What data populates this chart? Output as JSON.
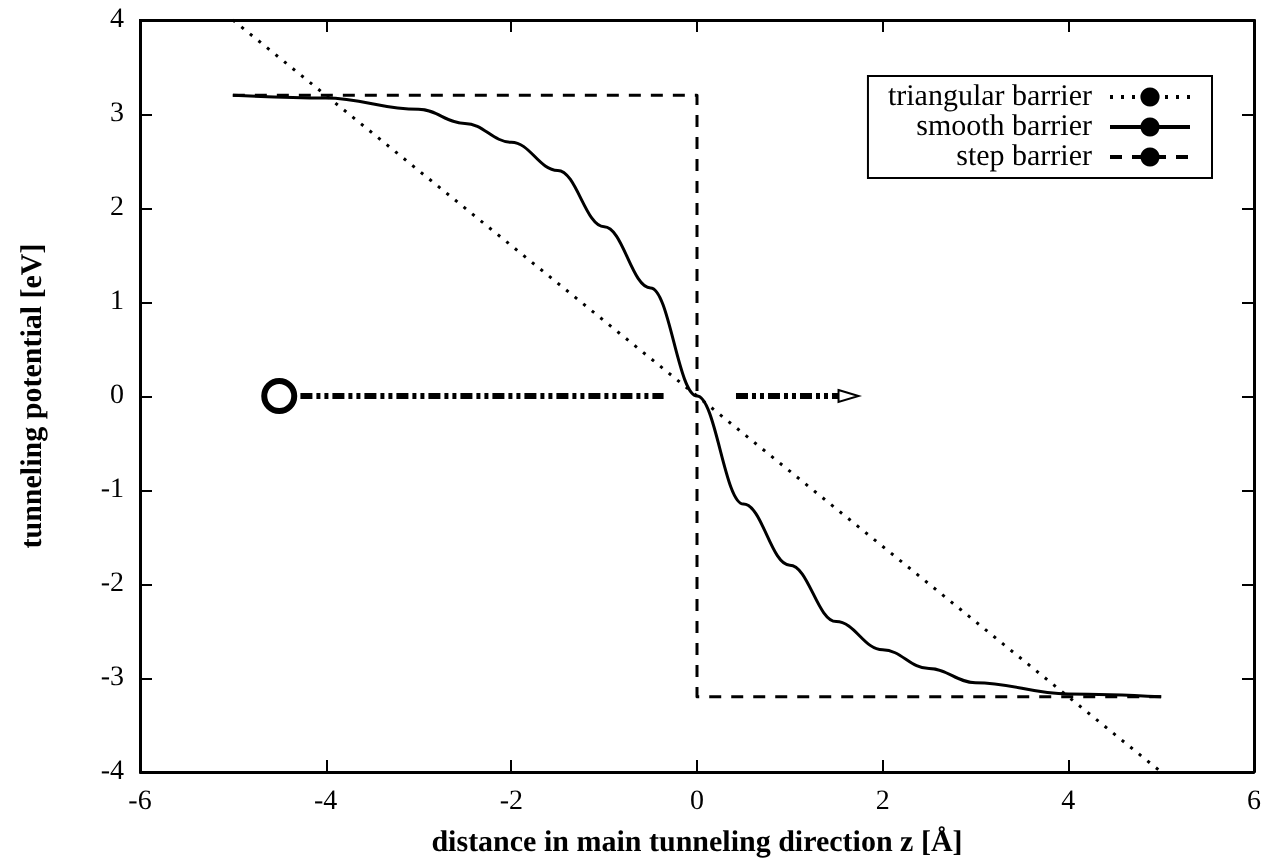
{
  "chart_data": {
    "type": "line",
    "xlabel": "distance in main tunneling direction z [Å]",
    "ylabel": "tunneling potential [eV]",
    "xlim": [
      -6,
      6
    ],
    "xticks": [
      -6,
      -4,
      -2,
      0,
      2,
      4,
      6
    ],
    "ylim": [
      -4,
      4
    ],
    "yticks": [
      -4,
      -3,
      -2,
      -1,
      0,
      1,
      2,
      3,
      4
    ],
    "grid": false,
    "legend": "top right",
    "marker": "none",
    "series": [
      {
        "name": "triangular barrier",
        "color": "#000000",
        "line_style": "dotted",
        "x": [
          -5,
          5
        ],
        "values": [
          4,
          -4
        ]
      },
      {
        "name": "smooth barrier",
        "color": "#000000",
        "line_style": "solid",
        "x": [
          -5,
          -4,
          -3,
          -2.5,
          -2,
          -1.5,
          -1,
          -0.5,
          0,
          0.5,
          1,
          1.5,
          2,
          2.5,
          3,
          4,
          5
        ],
        "values": [
          3.2,
          3.17,
          3.05,
          2.9,
          2.7,
          2.4,
          1.8,
          1.15,
          0,
          -1.15,
          -1.8,
          -2.4,
          -2.7,
          -2.9,
          -3.05,
          -3.17,
          -3.2
        ]
      },
      {
        "name": "step barrier",
        "color": "#000000",
        "line_style": "dashed",
        "x": [
          -5,
          0,
          0,
          5
        ],
        "values": [
          3.2,
          3.2,
          -3.2,
          -3.2
        ]
      }
    ]
  }
}
